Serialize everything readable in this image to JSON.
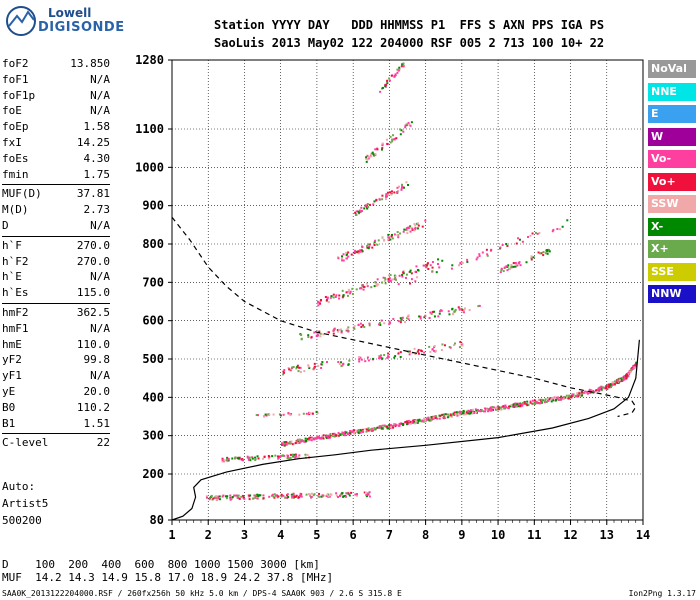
{
  "logo": {
    "line1": "Lowell",
    "line2": "DIGISONDE"
  },
  "header": {
    "line1": "Station YYYY DAY   DDD HHMMSS P1  FFS S AXN PPS IGA PS",
    "line2": "SaoLuis 2013 May02 122 204000 RSF 005 2 713 100 10+ 22"
  },
  "params": [
    {
      "name": "foF2",
      "value": "13.850"
    },
    {
      "name": "foF1",
      "value": "N/A"
    },
    {
      "name": "foF1p",
      "value": "N/A"
    },
    {
      "name": "foE",
      "value": "N/A"
    },
    {
      "name": "foEp",
      "value": "1.58"
    },
    {
      "name": "fxI",
      "value": "14.25"
    },
    {
      "name": "foEs",
      "value": "4.30"
    },
    {
      "name": "fmin",
      "value": "1.75"
    },
    {
      "name": "MUF(D)",
      "value": "37.81"
    },
    {
      "name": "M(D)",
      "value": "2.73"
    },
    {
      "name": "D",
      "value": "N/A"
    },
    {
      "name": "h`F",
      "value": "270.0"
    },
    {
      "name": "h`F2",
      "value": "270.0"
    },
    {
      "name": "h`E",
      "value": "N/A"
    },
    {
      "name": "h`Es",
      "value": "115.0"
    },
    {
      "name": "hmF2",
      "value": "362.5"
    },
    {
      "name": "hmF1",
      "value": "N/A"
    },
    {
      "name": "hmE",
      "value": "110.0"
    },
    {
      "name": "yF2",
      "value": "99.8"
    },
    {
      "name": "yF1",
      "value": "N/A"
    },
    {
      "name": "yE",
      "value": "20.0"
    },
    {
      "name": "B0",
      "value": "110.2"
    },
    {
      "name": "B1",
      "value": "1.51"
    },
    {
      "name": "C-level",
      "value": "22"
    }
  ],
  "auto": {
    "line1": "Auto:",
    "line2": "Artist5",
    "line3": "500200"
  },
  "legend": [
    {
      "label": "NoVal",
      "color": "#999999"
    },
    {
      "label": "NNE",
      "color": "#00e5e5"
    },
    {
      "label": "E",
      "color": "#3aa0f0"
    },
    {
      "label": "W",
      "color": "#a0009a"
    },
    {
      "label": "Vo-",
      "color": "#ff3fa0"
    },
    {
      "label": "Vo+",
      "color": "#f0103c"
    },
    {
      "label": "SSW",
      "color": "#f0a8a8"
    },
    {
      "label": "X-",
      "color": "#008800"
    },
    {
      "label": "X+",
      "color": "#6aaa4c"
    },
    {
      "label": "SSE",
      "color": "#cccc00"
    },
    {
      "label": "NNW",
      "color": "#1a10c8"
    }
  ],
  "muf_table": {
    "line1": "D    100  200  400  600  800 1000 1500 3000 [km]",
    "line2": "MUF  14.2 14.3 14.9 15.8 17.0 18.9 24.2 37.8 [MHz]"
  },
  "footer": {
    "left": "SAA0K_2013122204000.RSF / 260fx256h 50 kHz 5.0 km / DPS-4 SAA0K 903 / 2.6 S 315.8 E",
    "right": "Ion2Png 1.3.17"
  },
  "chart_data": {
    "type": "scatter",
    "x_ticks": [
      "1",
      "2",
      "3",
      "4",
      "5",
      "6",
      "7",
      "8",
      "9",
      "10",
      "11",
      "12",
      "13",
      "14"
    ],
    "y_ticks": [
      "80",
      "200",
      "300",
      "400",
      "500",
      "600",
      "700",
      "800",
      "900",
      "1000",
      "1100",
      "1280"
    ],
    "x_range": [
      1,
      14
    ],
    "y_range": [
      80,
      1280
    ],
    "grid": true,
    "series": [
      {
        "style": "solid",
        "x": [
          1.0,
          1.3,
          1.55,
          1.65,
          1.6,
          1.8,
          2.5,
          3.5,
          4.5,
          5.5,
          6.5,
          8,
          10,
          11.5,
          12.5,
          13.2,
          13.6,
          13.8,
          13.85,
          13.9
        ],
        "y": [
          80,
          90,
          110,
          140,
          165,
          185,
          205,
          225,
          240,
          250,
          262,
          275,
          295,
          320,
          345,
          370,
          400,
          450,
          500,
          550
        ]
      },
      {
        "style": "dashed",
        "x": [
          1.0,
          1.5,
          2.0,
          2.5,
          3.0,
          4.0,
          5.0,
          6.0,
          7.0,
          8.0,
          9.0,
          10.0,
          11.0,
          12.0,
          12.8,
          13.3,
          13.7,
          13.8,
          13.7,
          13.3
        ],
        "y": [
          870,
          810,
          740,
          690,
          650,
          600,
          570,
          550,
          530,
          510,
          490,
          470,
          450,
          425,
          410,
          400,
          390,
          375,
          360,
          350
        ]
      },
      {
        "style": "trace",
        "x": [
          4.0,
          5,
          6,
          7,
          8,
          9,
          10,
          11,
          12,
          13,
          13.5,
          13.8
        ],
        "y": [
          280,
          297,
          312,
          327,
          345,
          362,
          375,
          390,
          405,
          430,
          455,
          490
        ]
      }
    ]
  }
}
